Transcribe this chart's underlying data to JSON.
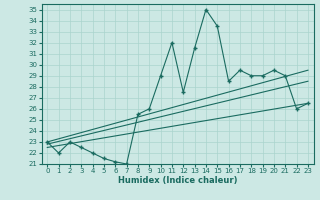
{
  "xlabel": "Humidex (Indice chaleur)",
  "ylabel": "",
  "xlim": [
    -0.5,
    23.5
  ],
  "ylim": [
    21,
    35.5
  ],
  "xticks": [
    0,
    1,
    2,
    3,
    4,
    5,
    6,
    7,
    8,
    9,
    10,
    11,
    12,
    13,
    14,
    15,
    16,
    17,
    18,
    19,
    20,
    21,
    22,
    23
  ],
  "yticks": [
    21,
    22,
    23,
    24,
    25,
    26,
    27,
    28,
    29,
    30,
    31,
    32,
    33,
    34,
    35
  ],
  "main_line_x": [
    0,
    1,
    2,
    3,
    4,
    5,
    6,
    7,
    8,
    9,
    10,
    11,
    12,
    13,
    14,
    15,
    16,
    17,
    18,
    19,
    20,
    21,
    22,
    23
  ],
  "main_line_y": [
    23.0,
    22.0,
    23.0,
    22.5,
    22.0,
    21.5,
    21.2,
    21.0,
    25.5,
    26.0,
    29.0,
    32.0,
    27.5,
    31.5,
    35.0,
    33.5,
    28.5,
    29.5,
    29.0,
    29.0,
    29.5,
    29.0,
    26.0,
    26.5
  ],
  "reg_line1_x": [
    0,
    23
  ],
  "reg_line1_y": [
    22.8,
    28.5
  ],
  "reg_line2_x": [
    0,
    23
  ],
  "reg_line2_y": [
    22.5,
    26.5
  ],
  "reg_line3_x": [
    0,
    23
  ],
  "reg_line3_y": [
    23.0,
    29.5
  ],
  "line_color": "#1a6b60",
  "bg_color": "#cce8e4",
  "grid_color": "#aad4ce",
  "xlabel_fontsize": 6,
  "tick_fontsize": 5
}
